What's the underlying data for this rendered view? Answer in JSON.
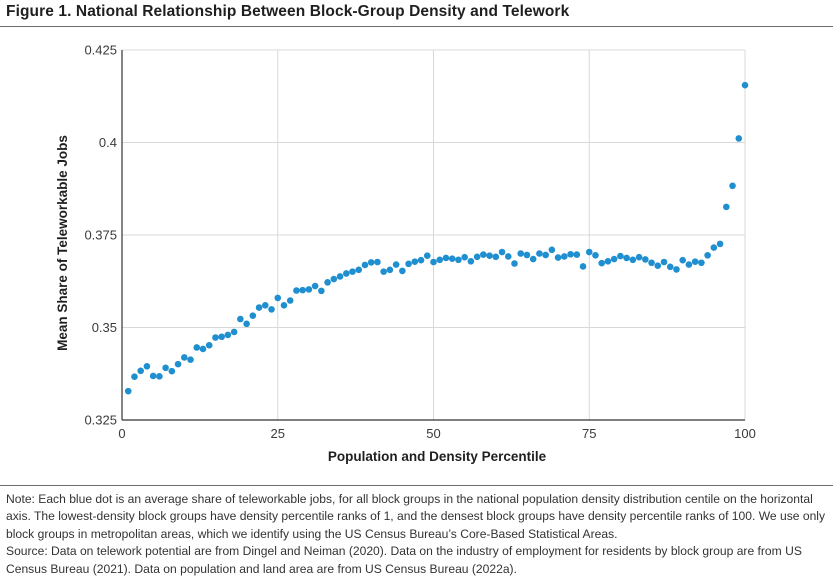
{
  "figure": {
    "title": "Figure 1. National Relationship Between Block-Group Density and Telework"
  },
  "notes": {
    "note": "Note: Each blue dot is an average share of teleworkable jobs, for all block groups in the national population density distribution centile on the horizontal axis. The lowest-density block groups have density percentile ranks of 1, and the densest block groups have density percentile ranks of 100. We use only block groups in metropolitan areas, which we identify using the US Census Bureau’s Core-Based Statistical Areas.",
    "source": "Source: Data on telework potential are from Dingel and Neiman (2020). Data on the industry of employment for residents by block group are from US Census Bureau (2021). Data on population and land area are from US Census Bureau (2022a)."
  },
  "colors": {
    "dot": "#1f8fd0",
    "grid": "#d8d8d8",
    "axis": "#333333"
  },
  "chart_data": {
    "type": "scatter",
    "title": "",
    "xlabel": "Population and Density Percentile",
    "ylabel": "Mean Share of Teleworkable Jobs",
    "xlim": [
      0,
      100
    ],
    "ylim": [
      0.325,
      0.425
    ],
    "xticks": [
      0,
      25,
      50,
      75,
      100
    ],
    "xtick_labels": [
      "0",
      "25",
      "50",
      "75",
      "100"
    ],
    "yticks": [
      0.325,
      0.35,
      0.375,
      0.4,
      0.425
    ],
    "ytick_labels": [
      "0.325",
      "0.35",
      "0.375",
      "0.4",
      "0.425"
    ],
    "grid": true,
    "series": [
      {
        "x": [
          1,
          2,
          3,
          4,
          5,
          6,
          7,
          8,
          9,
          10,
          11,
          12,
          13,
          14,
          15,
          16,
          17,
          18,
          19,
          20,
          21,
          22,
          23,
          24,
          25,
          26,
          27,
          28,
          29,
          30,
          31,
          32,
          33,
          34,
          35,
          36,
          37,
          38,
          39,
          40,
          41,
          42,
          43,
          44,
          45,
          46,
          47,
          48,
          49,
          50,
          51,
          52,
          53,
          54,
          55,
          56,
          57,
          58,
          59,
          60,
          61,
          62,
          63,
          64,
          65,
          66,
          67,
          68,
          69,
          70,
          71,
          72,
          73,
          74,
          75,
          76,
          77,
          78,
          79,
          80,
          81,
          82,
          83,
          84,
          85,
          86,
          87,
          88,
          89,
          90,
          91,
          92,
          93,
          94,
          95,
          96,
          97,
          98,
          99,
          100
        ],
        "y": [
          0.3328,
          0.3367,
          0.3383,
          0.3395,
          0.3369,
          0.3368,
          0.3391,
          0.3382,
          0.3401,
          0.3419,
          0.3413,
          0.3446,
          0.3442,
          0.3452,
          0.3473,
          0.3475,
          0.348,
          0.3488,
          0.3523,
          0.351,
          0.3532,
          0.3554,
          0.356,
          0.3549,
          0.358,
          0.356,
          0.3573,
          0.36,
          0.3601,
          0.3603,
          0.3612,
          0.3599,
          0.3622,
          0.3631,
          0.3638,
          0.3646,
          0.3651,
          0.3656,
          0.3669,
          0.3676,
          0.3677,
          0.3651,
          0.3656,
          0.367,
          0.3653,
          0.3672,
          0.3678,
          0.3682,
          0.3694,
          0.3677,
          0.3683,
          0.3688,
          0.3686,
          0.3683,
          0.369,
          0.3679,
          0.3691,
          0.3697,
          0.3694,
          0.3691,
          0.3704,
          0.3692,
          0.3673,
          0.37,
          0.3696,
          0.3685,
          0.37,
          0.3696,
          0.371,
          0.3689,
          0.3692,
          0.3698,
          0.3697,
          0.3665,
          0.3704,
          0.3695,
          0.3674,
          0.3679,
          0.3685,
          0.3693,
          0.3688,
          0.3683,
          0.369,
          0.3684,
          0.3675,
          0.3667,
          0.3677,
          0.3664,
          0.3657,
          0.3682,
          0.367,
          0.3678,
          0.3675,
          0.3695,
          0.3716,
          0.3726,
          0.3826,
          0.3883,
          0.4011,
          0.4155
        ]
      }
    ]
  }
}
